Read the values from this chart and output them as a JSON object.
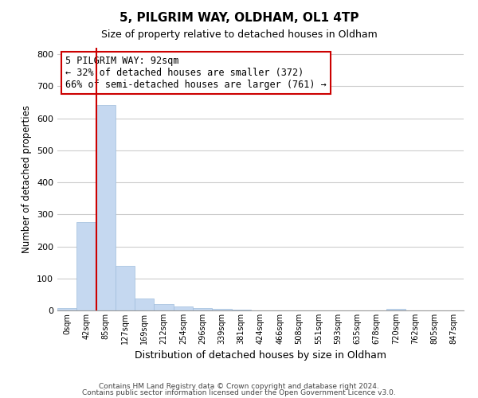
{
  "title": "5, PILGRIM WAY, OLDHAM, OL1 4TP",
  "subtitle": "Size of property relative to detached houses in Oldham",
  "xlabel": "Distribution of detached houses by size in Oldham",
  "ylabel": "Number of detached properties",
  "bar_labels": [
    "0sqm",
    "42sqm",
    "85sqm",
    "127sqm",
    "169sqm",
    "212sqm",
    "254sqm",
    "296sqm",
    "339sqm",
    "381sqm",
    "424sqm",
    "466sqm",
    "508sqm",
    "551sqm",
    "593sqm",
    "635sqm",
    "678sqm",
    "720sqm",
    "762sqm",
    "805sqm",
    "847sqm"
  ],
  "bar_values": [
    8,
    275,
    641,
    140,
    38,
    20,
    12,
    8,
    5,
    2,
    0,
    0,
    0,
    0,
    0,
    0,
    0,
    5,
    0,
    0,
    0
  ],
  "bar_color": "#c5d8f0",
  "bar_edge_color": "#a0bedd",
  "property_line_color": "#cc0000",
  "annotation_line1": "5 PILGRIM WAY: 92sqm",
  "annotation_line2": "← 32% of detached houses are smaller (372)",
  "annotation_line3": "66% of semi-detached houses are larger (761) →",
  "annotation_box_color": "#ffffff",
  "annotation_box_edge": "#cc0000",
  "annotation_fontsize": 8.5,
  "ylim": [
    0,
    820
  ],
  "yticks": [
    0,
    100,
    200,
    300,
    400,
    500,
    600,
    700,
    800
  ],
  "footer_line1": "Contains HM Land Registry data © Crown copyright and database right 2024.",
  "footer_line2": "Contains public sector information licensed under the Open Government Licence v3.0.",
  "background_color": "#ffffff",
  "grid_color": "#cccccc",
  "title_fontsize": 11,
  "subtitle_fontsize": 9
}
